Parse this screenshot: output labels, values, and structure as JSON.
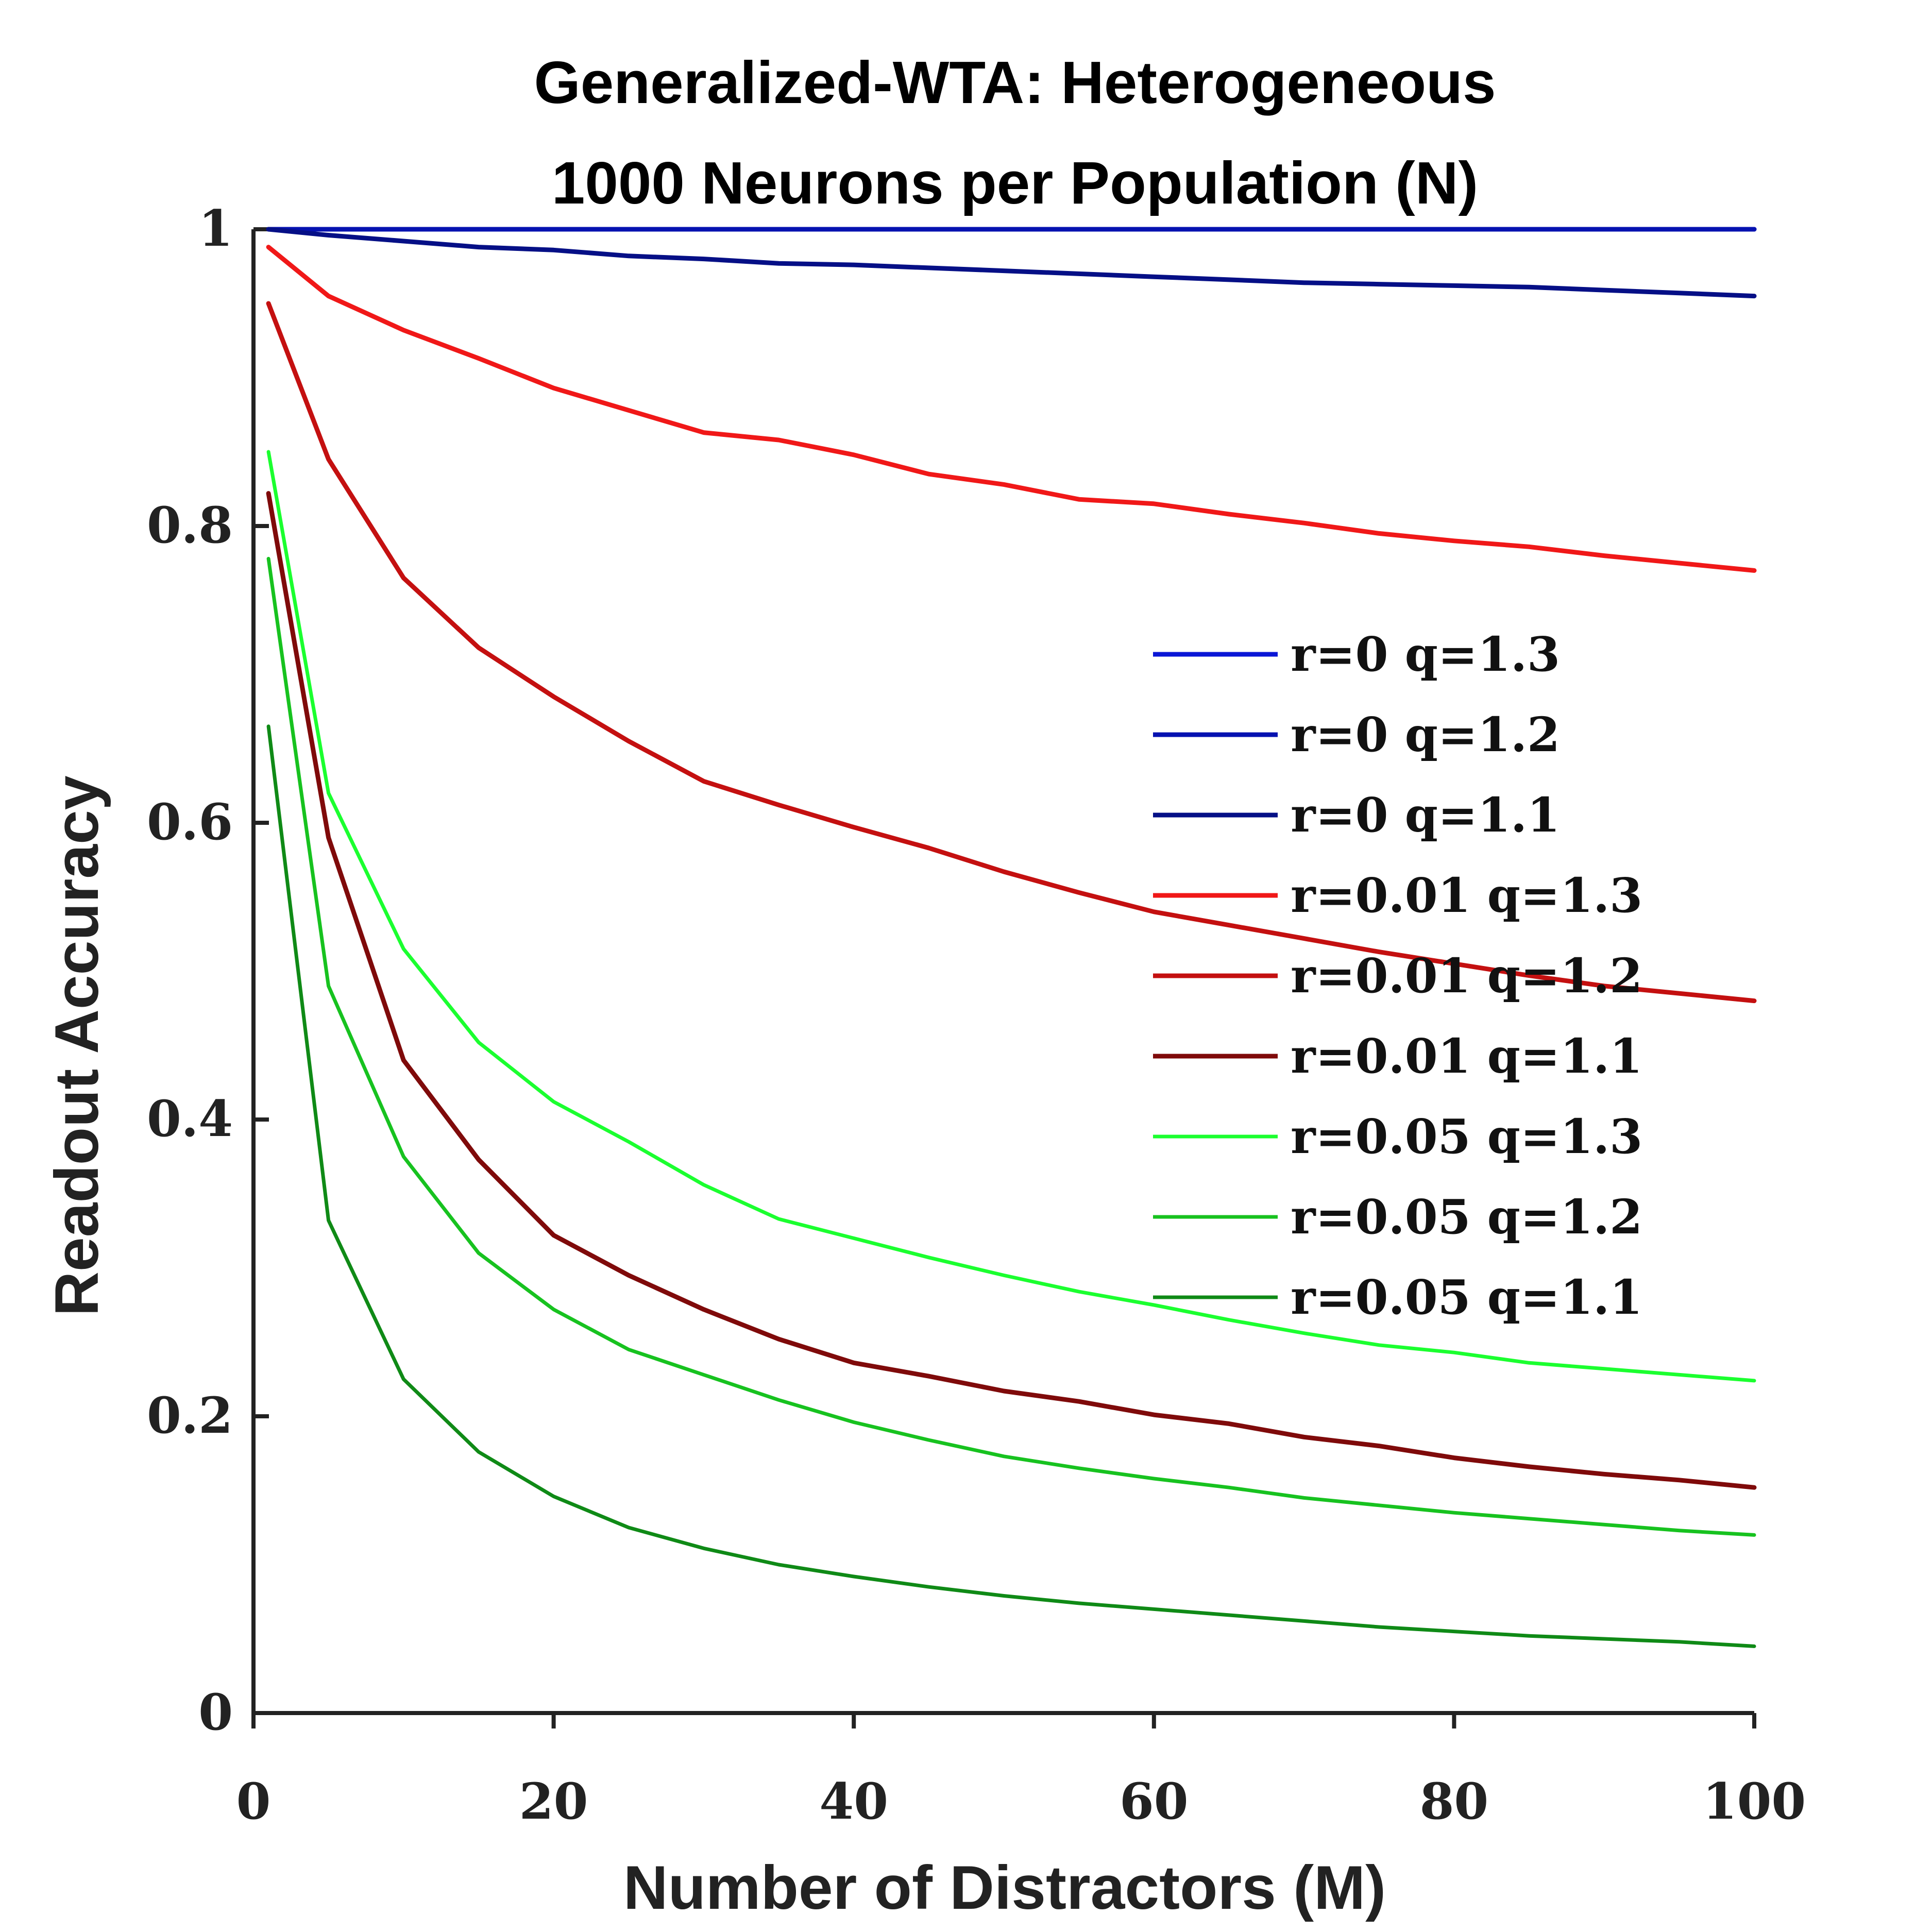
{
  "chart_data": {
    "type": "line",
    "title": "Generalized-WTA: Heterogeneous",
    "subtitle": "1000 Neurons per Population (N)",
    "xlabel": "Number of Distractors (M)",
    "ylabel": "Readout Accuracy",
    "xlim": [
      0,
      100
    ],
    "ylim": [
      0,
      1
    ],
    "xticks": [
      0,
      20,
      40,
      60,
      80,
      100
    ],
    "yticks": [
      0,
      0.2,
      0.4,
      0.6,
      0.8,
      1
    ],
    "xtick_labels": [
      "0",
      "20",
      "40",
      "60",
      "80",
      "100"
    ],
    "ytick_labels": [
      "0",
      "0.2",
      "0.4",
      "0.6",
      "0.8",
      "1"
    ],
    "grid": false,
    "legend_position": "center-right",
    "x": [
      1,
      5,
      10,
      15,
      20,
      25,
      30,
      35,
      40,
      45,
      50,
      55,
      60,
      65,
      70,
      75,
      80,
      85,
      90,
      95,
      100
    ],
    "series": [
      {
        "name": "r=0 q=1.3",
        "color": "#0b17d6",
        "values": [
          1.0,
          1.0,
          1.0,
          1.0,
          1.0,
          1.0,
          1.0,
          1.0,
          1.0,
          1.0,
          1.0,
          1.0,
          1.0,
          1.0,
          1.0,
          1.0,
          1.0,
          1.0,
          1.0,
          1.0,
          1.0
        ]
      },
      {
        "name": "r=0 q=1.2",
        "color": "#0612b0",
        "values": [
          1.0,
          1.0,
          1.0,
          1.0,
          1.0,
          1.0,
          1.0,
          1.0,
          1.0,
          1.0,
          1.0,
          1.0,
          1.0,
          1.0,
          1.0,
          1.0,
          1.0,
          1.0,
          1.0,
          1.0,
          1.0
        ]
      },
      {
        "name": "r=0 q=1.1",
        "color": "#050f86",
        "values": [
          1.0,
          0.996,
          0.992,
          0.988,
          0.986,
          0.982,
          0.98,
          0.977,
          0.976,
          0.974,
          0.972,
          0.97,
          0.968,
          0.966,
          0.964,
          0.963,
          0.962,
          0.961,
          0.959,
          0.957,
          0.955
        ]
      },
      {
        "name": "r=0.01 q=1.3",
        "color": "#f01818",
        "values": [
          0.988,
          0.955,
          0.932,
          0.913,
          0.893,
          0.878,
          0.863,
          0.858,
          0.848,
          0.835,
          0.828,
          0.818,
          0.815,
          0.808,
          0.802,
          0.795,
          0.79,
          0.786,
          0.78,
          0.775,
          0.77
        ]
      },
      {
        "name": "r=0.01 q=1.2",
        "color": "#c41010",
        "values": [
          0.95,
          0.845,
          0.765,
          0.718,
          0.685,
          0.655,
          0.628,
          0.612,
          0.597,
          0.583,
          0.567,
          0.553,
          0.54,
          0.531,
          0.522,
          0.513,
          0.505,
          0.497,
          0.49,
          0.485,
          0.48
        ]
      },
      {
        "name": "r=0.01 q=1.1",
        "color": "#7f0a0a",
        "values": [
          0.822,
          0.59,
          0.44,
          0.373,
          0.322,
          0.295,
          0.272,
          0.252,
          0.236,
          0.227,
          0.217,
          0.21,
          0.201,
          0.195,
          0.186,
          0.18,
          0.172,
          0.166,
          0.161,
          0.157,
          0.152
        ]
      },
      {
        "name": "r=0.05 q=1.3",
        "color": "#1bff2f",
        "values": [
          0.85,
          0.62,
          0.515,
          0.452,
          0.412,
          0.385,
          0.356,
          0.333,
          0.32,
          0.307,
          0.295,
          0.284,
          0.275,
          0.265,
          0.256,
          0.248,
          0.243,
          0.236,
          0.232,
          0.228,
          0.224
        ]
      },
      {
        "name": "r=0.05 q=1.2",
        "color": "#17c21f",
        "values": [
          0.778,
          0.49,
          0.375,
          0.31,
          0.272,
          0.245,
          0.228,
          0.211,
          0.196,
          0.184,
          0.173,
          0.165,
          0.158,
          0.152,
          0.145,
          0.14,
          0.135,
          0.131,
          0.127,
          0.123,
          0.12
        ]
      },
      {
        "name": "r=0.05 q=1.1",
        "color": "#0f8a16",
        "values": [
          0.665,
          0.332,
          0.225,
          0.176,
          0.146,
          0.125,
          0.111,
          0.1,
          0.092,
          0.085,
          0.079,
          0.074,
          0.07,
          0.066,
          0.062,
          0.058,
          0.055,
          0.052,
          0.05,
          0.048,
          0.045
        ]
      }
    ]
  }
}
